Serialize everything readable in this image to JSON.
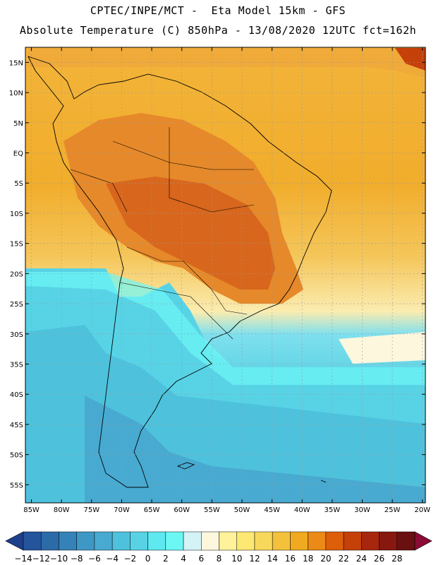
{
  "header": {
    "line1": "CPTEC/INPE/MCT -  Eta Model 15km - GFS",
    "line2": "Absolute Temperature (C) 850hPa - 13/08/2020 12UTC fct=162h"
  },
  "map": {
    "lat_labels": [
      "15N",
      "10N",
      "5N",
      "EQ",
      "5S",
      "10S",
      "15S",
      "20S",
      "25S",
      "30S",
      "35S",
      "40S",
      "45S",
      "50S",
      "55S"
    ],
    "lon_labels": [
      "85W",
      "80W",
      "75W",
      "70W",
      "65W",
      "60W",
      "55W",
      "50W",
      "45W",
      "40W",
      "35W",
      "30W",
      "25W",
      "20W"
    ],
    "lat_range": [
      17.5,
      -58.0
    ],
    "lon_range": [
      -86.0,
      -19.5
    ]
  },
  "colorbar": {
    "levels": [
      "-14",
      "-12",
      "-10",
      "-8",
      "-6",
      "-4",
      "-2",
      "0",
      "2",
      "4",
      "6",
      "8",
      "10",
      "12",
      "14",
      "16",
      "18",
      "20",
      "22",
      "24",
      "26",
      "28"
    ],
    "colors": [
      "#1e3f8c",
      "#23549c",
      "#2b6ba8",
      "#3482b8",
      "#3e98c6",
      "#48aad1",
      "#4ec2dc",
      "#58d3e6",
      "#5ee8ef",
      "#6cf7f5",
      "#d3f3f7",
      "#fdf7dd",
      "#fff29a",
      "#fde873",
      "#f7d85a",
      "#f3c13c",
      "#f1aa1f",
      "#eb8a16",
      "#dd5f0a",
      "#c6400a",
      "#a7260d",
      "#86180f",
      "#6a1010",
      "#8a0b35"
    ]
  }
}
